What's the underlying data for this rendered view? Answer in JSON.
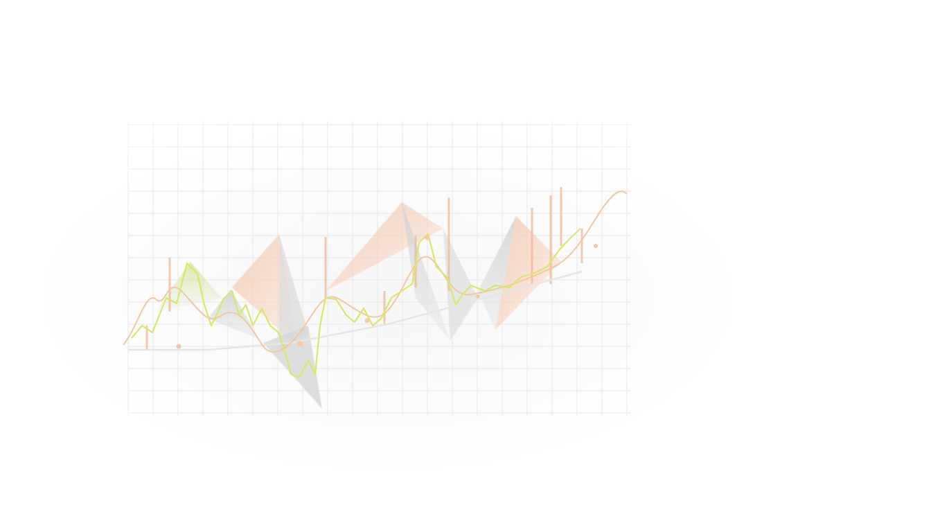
{
  "illustration": {
    "kind": "abstract-financial-chart-graphic",
    "colors": {
      "background": "#ffffff",
      "grid": "#eeeeee",
      "triangle_gray": "#d9d9d9",
      "triangle_peach": "#f6cdb8",
      "green_line": "#d6e85a",
      "orange_line": "#f3c9a6",
      "trend_line": "#e8e8e8",
      "bars": "#f2b79a"
    }
  }
}
